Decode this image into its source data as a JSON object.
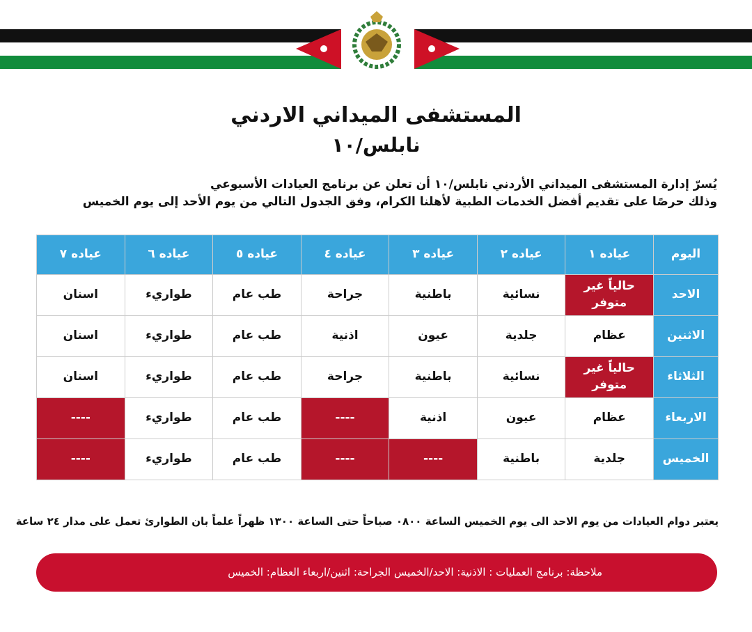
{
  "header": {
    "title": "المستشفى الميداني الاردني",
    "subtitle": "نابلس/١٠"
  },
  "intro": [
    "يُسرّ إدارة المستشفى الميداني الأردني نابلس/١٠ أن تعلن عن برنامج العيادات الأسبوعي",
    "وذلك حرصًا على تقديم أفضل الخدمات الطبية لأهلنا الكرام، وفق الجدول التالي من يوم الأحد إلى يوم الخميس"
  ],
  "table": {
    "header": [
      "اليوم",
      "عياده ١",
      "عياده ٢",
      "عياده ٣",
      "عياده ٤",
      "عياده ٥",
      "عياده ٦",
      "عياده ٧"
    ],
    "rows": [
      [
        "الاحد",
        "حالياً غير متوفر",
        "نسائية",
        "باطنية",
        "جراحة",
        "طب عام",
        "طواريء",
        "اسنان"
      ],
      [
        "الاثنين",
        "عظام",
        "جلدية",
        "عيون",
        "اذنية",
        "طب عام",
        "طواريء",
        "اسنان"
      ],
      [
        "الثلاثاء",
        "حالياً غير متوفر",
        "نسائية",
        "باطنية",
        "جراحة",
        "طب عام",
        "طواريء",
        "اسنان"
      ],
      [
        "الاربعاء",
        "عظام",
        "عيون",
        "اذنية",
        "----",
        "طب عام",
        "طواريء",
        "----"
      ],
      [
        "الخميس",
        "جلدية",
        "باطنية",
        "----",
        "----",
        "طب عام",
        "طواريء",
        "----"
      ]
    ]
  },
  "footnote": "يعتبر دوام العيادات من يوم الاحد الى يوم الخميس الساعة ٠٨٠٠ صباحاً حتى الساعة ١٣٠٠ ظهراً علماً بان الطوارئ تعمل على مدار ٢٤ ساعة",
  "note": "ملاحظة: برنامج العمليات : الاذنية: الاحد/الخميس   الجراحة: اثنين/اربعاء   العظام: الخميس"
}
